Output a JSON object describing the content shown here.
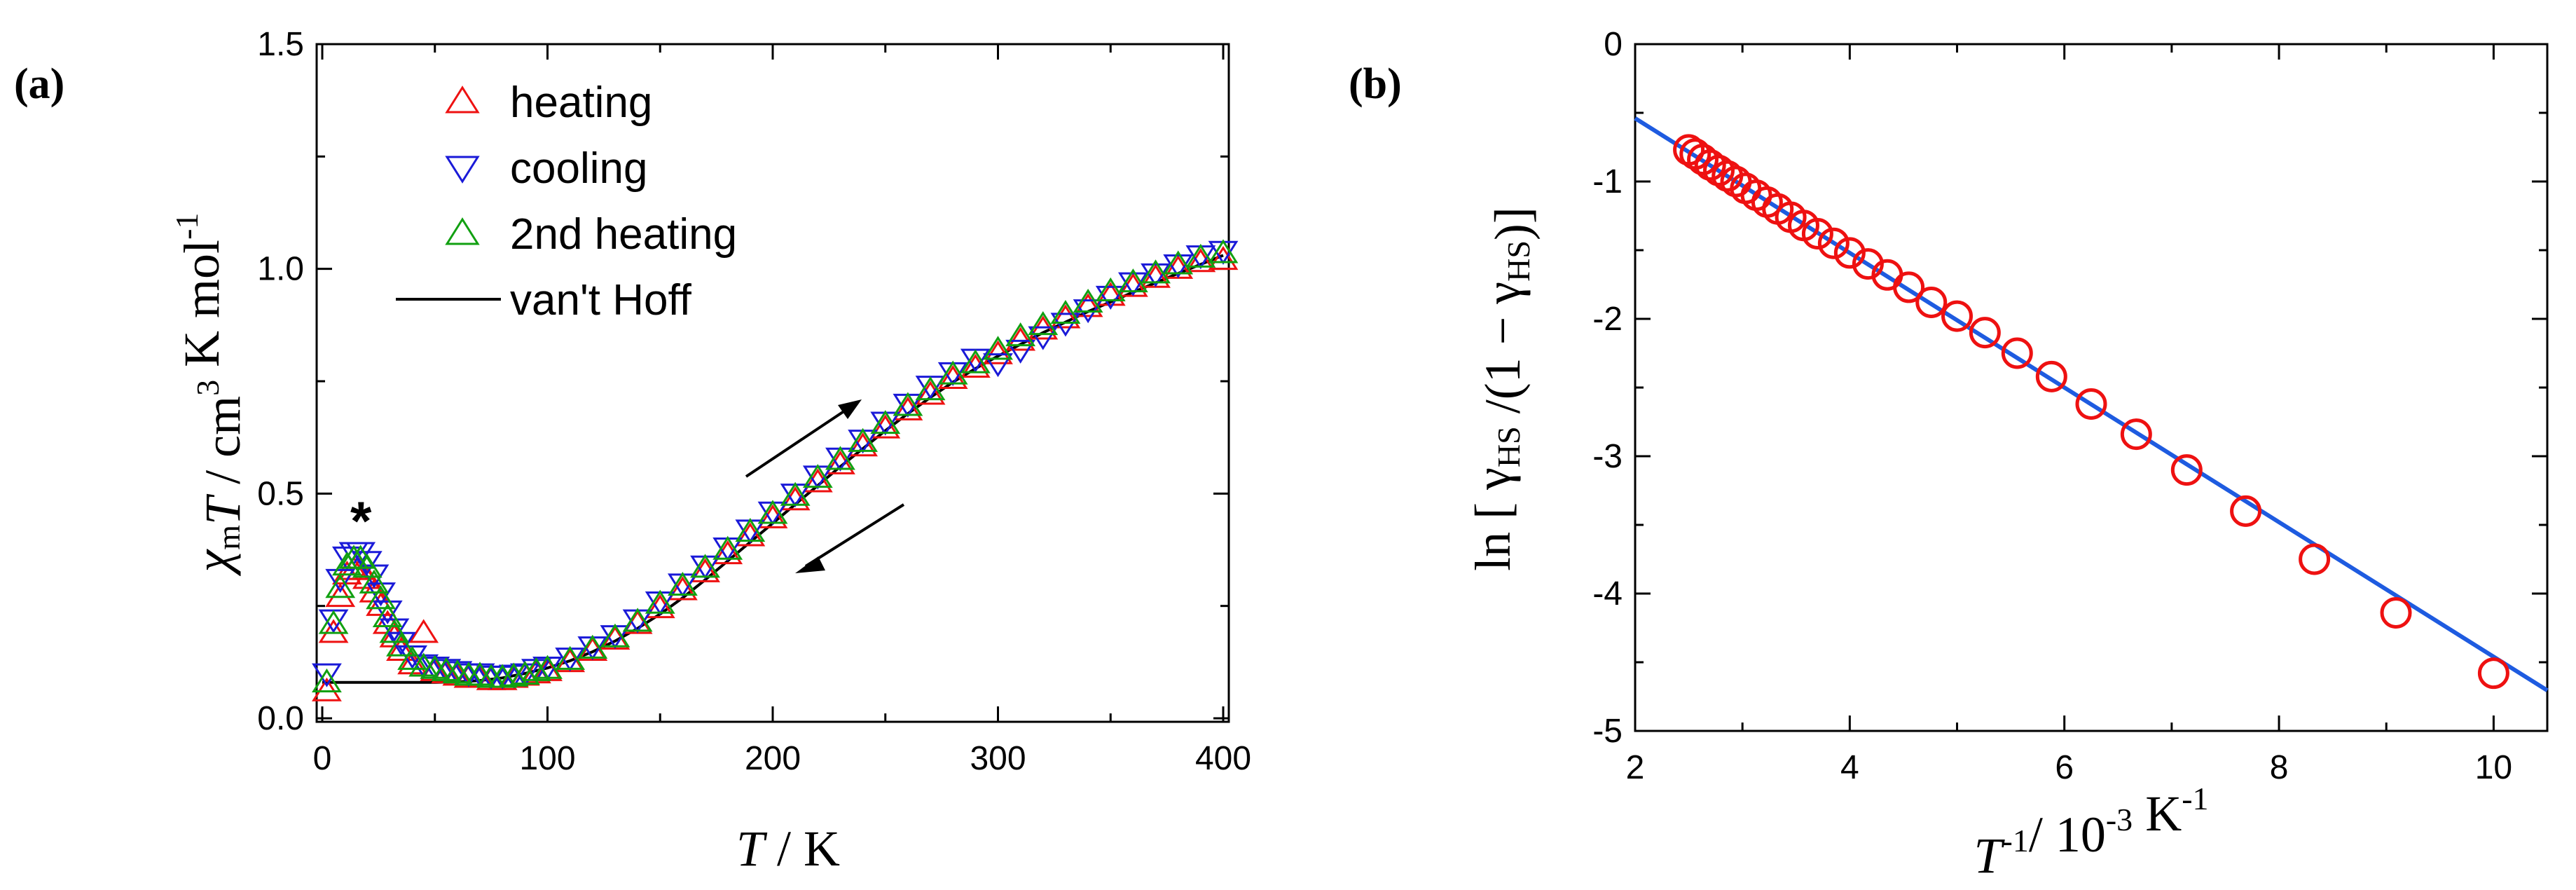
{
  "chart_data": [
    {
      "panel_label": "a",
      "type": "scatter",
      "xlim": [
        0,
        400
      ],
      "ylim": [
        0,
        1.5
      ],
      "x_ticks": [
        "0",
        "100",
        "200",
        "300",
        "400"
      ],
      "y_ticks": [
        "0.0",
        "0.5",
        "1.0",
        "1.5"
      ],
      "xlabel_var": "T",
      "xlabel_unit": " / K",
      "ylabel_parts": [
        "χ",
        "m",
        "T",
        " / cm",
        "3",
        " K mol",
        "-1"
      ],
      "annotation": "*",
      "legend": [
        {
          "label": "heating",
          "color": "#ee1111",
          "marker": "triangle-up"
        },
        {
          "label": "cooling",
          "color": "#1a1ad8",
          "marker": "triangle-down"
        },
        {
          "label": "2nd heating",
          "color": "#11a011",
          "marker": "triangle-up"
        },
        {
          "label": "van't Hoff",
          "color": "#000000",
          "marker": "line"
        }
      ],
      "series": [
        {
          "name": "cooling",
          "x": [
            2,
            5,
            8,
            11,
            14,
            17,
            20,
            23,
            26,
            29,
            32,
            35,
            40,
            45,
            50,
            55,
            60,
            65,
            70,
            75,
            80,
            85,
            90,
            95,
            100,
            110,
            120,
            130,
            140,
            150,
            160,
            170,
            180,
            190,
            200,
            210,
            220,
            230,
            240,
            250,
            260,
            270,
            280,
            290,
            300,
            310,
            320,
            330,
            340,
            350,
            360,
            370,
            380,
            390,
            400
          ],
          "y": [
            0.1,
            0.22,
            0.31,
            0.36,
            0.37,
            0.37,
            0.35,
            0.32,
            0.28,
            0.24,
            0.2,
            0.17,
            0.14,
            0.12,
            0.115,
            0.11,
            0.105,
            0.1,
            0.1,
            0.095,
            0.095,
            0.097,
            0.1,
            0.11,
            0.115,
            0.135,
            0.16,
            0.185,
            0.22,
            0.26,
            0.3,
            0.34,
            0.38,
            0.42,
            0.46,
            0.5,
            0.54,
            0.58,
            0.62,
            0.66,
            0.7,
            0.74,
            0.77,
            0.8,
            0.79,
            0.82,
            0.85,
            0.88,
            0.91,
            0.94,
            0.97,
            0.99,
            1.01,
            1.03,
            1.04
          ]
        },
        {
          "name": "heating",
          "x": [
            2,
            5,
            8,
            11,
            14,
            17,
            20,
            23,
            26,
            29,
            32,
            35,
            40,
            45,
            50,
            55,
            60,
            65,
            70,
            75,
            80,
            85,
            90,
            95,
            100,
            110,
            120,
            130,
            140,
            150,
            160,
            170,
            180,
            190,
            200,
            210,
            220,
            230,
            240,
            250,
            260,
            270,
            280,
            290,
            300,
            310,
            320,
            330,
            340,
            350,
            360,
            370,
            380,
            390,
            400
          ],
          "y": [
            0.06,
            0.19,
            0.27,
            0.32,
            0.33,
            0.33,
            0.31,
            0.28,
            0.25,
            0.21,
            0.18,
            0.15,
            0.12,
            0.19,
            0.105,
            0.1,
            0.095,
            0.09,
            0.09,
            0.085,
            0.085,
            0.09,
            0.095,
            0.1,
            0.105,
            0.125,
            0.15,
            0.175,
            0.21,
            0.245,
            0.285,
            0.325,
            0.365,
            0.405,
            0.445,
            0.485,
            0.525,
            0.565,
            0.605,
            0.645,
            0.685,
            0.72,
            0.755,
            0.78,
            0.81,
            0.84,
            0.865,
            0.89,
            0.915,
            0.94,
            0.96,
            0.98,
            1.0,
            1.015,
            1.02
          ]
        },
        {
          "name": "2nd heating",
          "x": [
            2,
            5,
            8,
            11,
            14,
            17,
            20,
            23,
            26,
            29,
            32,
            35,
            40,
            45,
            50,
            55,
            60,
            65,
            70,
            75,
            80,
            85,
            90,
            95,
            100,
            110,
            120,
            130,
            140,
            150,
            160,
            170,
            180,
            190,
            200,
            210,
            220,
            230,
            240,
            250,
            260,
            270,
            280,
            290,
            300,
            310,
            320,
            330,
            340,
            350,
            360,
            370,
            380,
            390,
            400
          ],
          "y": [
            0.08,
            0.21,
            0.29,
            0.34,
            0.355,
            0.355,
            0.335,
            0.3,
            0.265,
            0.225,
            0.19,
            0.16,
            0.13,
            0.115,
            0.11,
            0.105,
            0.1,
            0.095,
            0.095,
            0.09,
            0.09,
            0.093,
            0.097,
            0.105,
            0.11,
            0.13,
            0.155,
            0.18,
            0.215,
            0.255,
            0.295,
            0.335,
            0.375,
            0.415,
            0.455,
            0.495,
            0.535,
            0.575,
            0.615,
            0.655,
            0.695,
            0.73,
            0.765,
            0.79,
            0.82,
            0.85,
            0.875,
            0.9,
            0.925,
            0.95,
            0.97,
            0.99,
            1.01,
            1.025,
            1.035
          ]
        },
        {
          "name": "van't Hoff",
          "x": [
            0,
            50,
            60,
            70,
            80,
            90,
            100,
            110,
            120,
            130,
            140,
            150,
            160,
            170,
            180,
            190,
            200,
            210,
            220,
            230,
            240,
            250,
            260,
            270,
            280,
            290,
            300,
            320,
            340,
            360,
            380,
            400
          ],
          "y": [
            0.08,
            0.08,
            0.081,
            0.084,
            0.09,
            0.1,
            0.112,
            0.128,
            0.148,
            0.172,
            0.2,
            0.232,
            0.268,
            0.308,
            0.35,
            0.392,
            0.434,
            0.476,
            0.518,
            0.56,
            0.6,
            0.64,
            0.678,
            0.714,
            0.748,
            0.778,
            0.806,
            0.858,
            0.905,
            0.948,
            0.99,
            1.03
          ]
        }
      ]
    },
    {
      "panel_label": "b",
      "type": "scatter",
      "xlim": [
        2,
        10.5
      ],
      "ylim": [
        -5,
        0
      ],
      "x_ticks": [
        "2",
        "4",
        "6",
        "8",
        "10"
      ],
      "y_ticks": [
        "0",
        "-1",
        "-2",
        "-3",
        "-4",
        "-5"
      ],
      "xlabel_parts": [
        "T",
        "-1",
        "/ 10",
        "-3",
        " K",
        "-1"
      ],
      "ylabel_parts": [
        "ln [ γ",
        "HS",
        " /(1 − γ",
        "HS",
        ")]"
      ],
      "fit_line": {
        "color": "#1e5be0",
        "slope": -0.49,
        "intercept": 0.44
      },
      "series": [
        {
          "name": "data",
          "color": "#ee1111",
          "marker": "circle",
          "x": [
            2.5,
            2.56,
            2.63,
            2.7,
            2.78,
            2.86,
            2.94,
            3.03,
            3.13,
            3.23,
            3.33,
            3.45,
            3.57,
            3.7,
            3.85,
            4.0,
            4.17,
            4.35,
            4.55,
            4.76,
            5.0,
            5.26,
            5.56,
            5.88,
            6.25,
            6.67,
            7.14,
            7.69,
            8.33,
            9.09,
            10.0
          ],
          "y": [
            -0.77,
            -0.8,
            -0.84,
            -0.88,
            -0.92,
            -0.96,
            -1.0,
            -1.05,
            -1.1,
            -1.15,
            -1.2,
            -1.26,
            -1.32,
            -1.38,
            -1.45,
            -1.52,
            -1.6,
            -1.68,
            -1.77,
            -1.88,
            -1.98,
            -2.1,
            -2.25,
            -2.42,
            -2.62,
            -2.84,
            -3.1,
            -3.4,
            -3.75,
            -4.14,
            -4.58
          ]
        }
      ]
    }
  ]
}
